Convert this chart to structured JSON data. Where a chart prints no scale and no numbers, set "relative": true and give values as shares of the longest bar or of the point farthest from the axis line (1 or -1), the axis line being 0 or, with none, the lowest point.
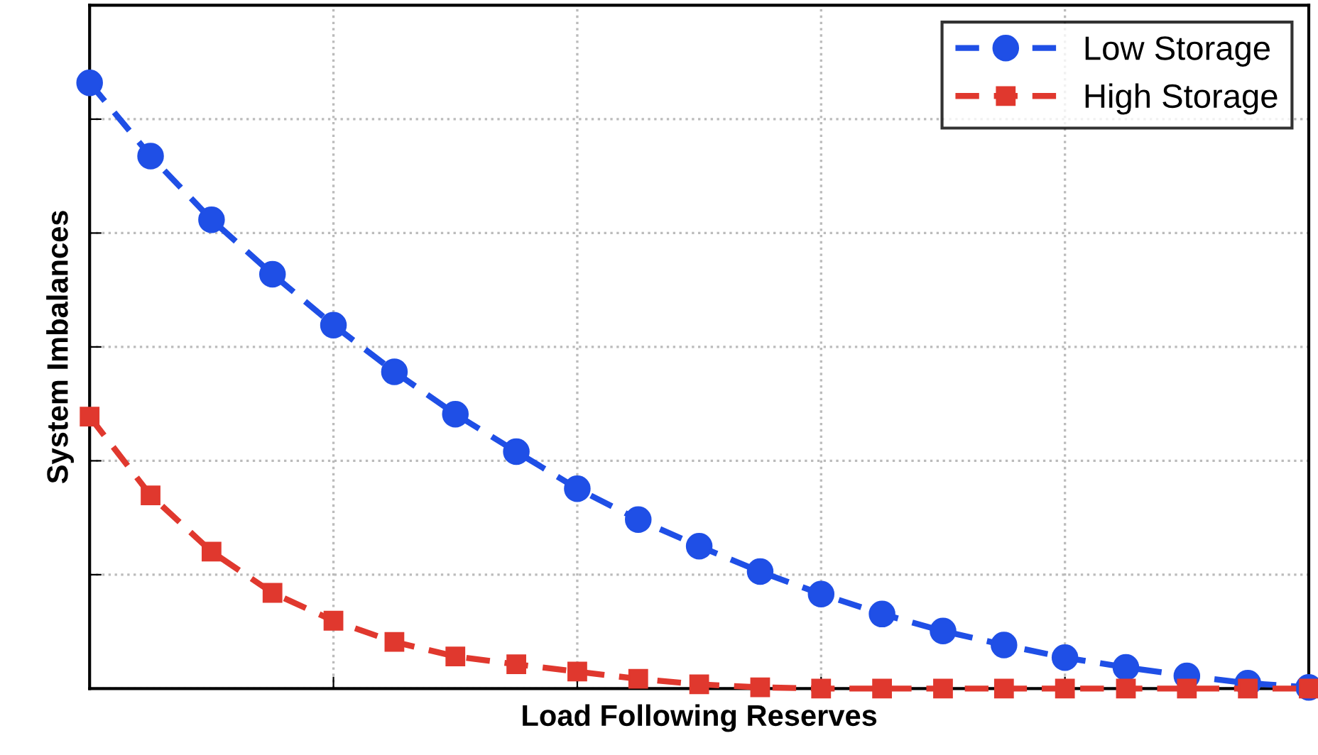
{
  "chart_data": {
    "type": "line",
    "xlabel": "Load Following Reserves",
    "ylabel": "System Imbalances",
    "relative": true,
    "grid": true,
    "legend": "top right",
    "tick_labels": false,
    "line_style": "dashed",
    "categories": [
      null,
      null,
      null,
      null,
      null,
      null,
      null,
      null,
      null,
      null,
      null,
      null,
      null,
      null,
      null,
      null,
      null,
      null,
      null,
      null,
      null
    ],
    "series": [
      {
        "name": "Low Storage",
        "color": "#1f4fe6",
        "marker": "circle",
        "values": [
          1.0,
          0.879,
          0.774,
          0.684,
          0.6,
          0.523,
          0.453,
          0.391,
          0.33,
          0.279,
          0.235,
          0.193,
          0.156,
          0.123,
          0.095,
          0.072,
          0.051,
          0.035,
          0.021,
          0.009,
          0.002
        ]
      },
      {
        "name": "High Storage",
        "color": "#e0382e",
        "marker": "square",
        "values": [
          0.449,
          0.319,
          0.226,
          0.158,
          0.112,
          0.077,
          0.053,
          0.04,
          0.028,
          0.016,
          0.007,
          0.002,
          0,
          0,
          0,
          0,
          0,
          0,
          0,
          0,
          0
        ]
      }
    ]
  }
}
